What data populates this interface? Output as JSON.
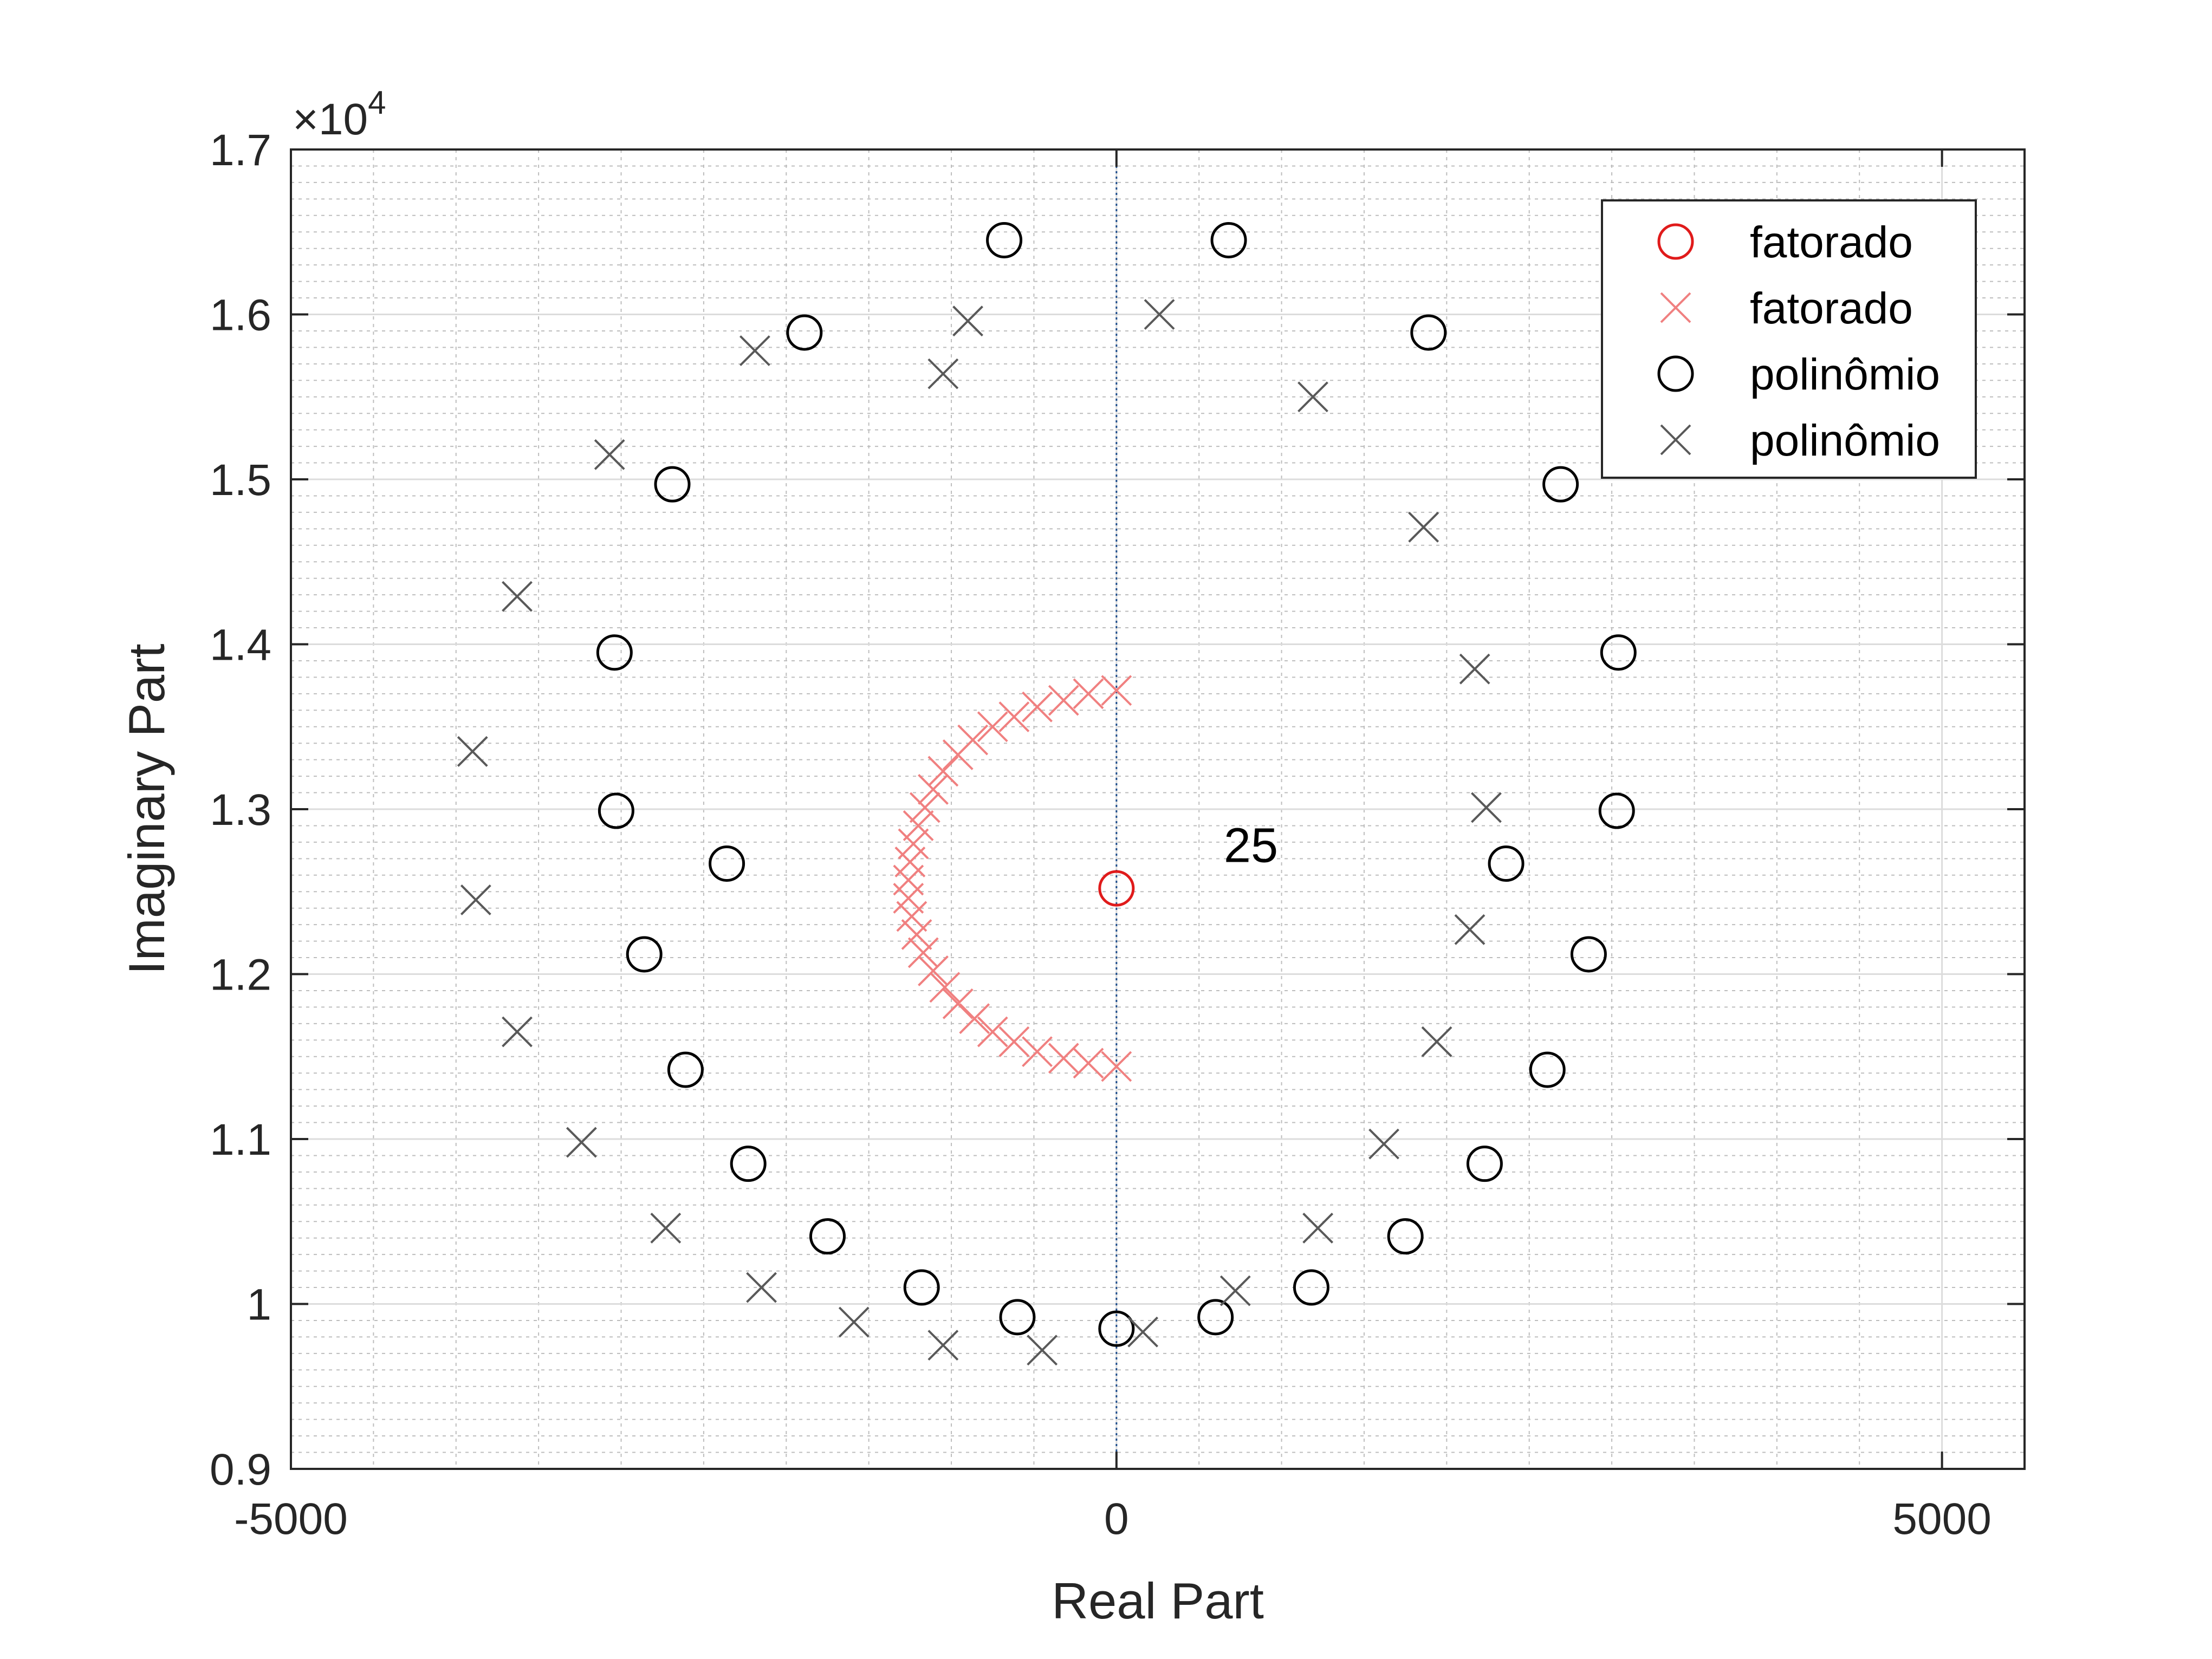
{
  "chart_data": {
    "type": "scatter",
    "title": "",
    "xlabel": "Real Part",
    "ylabel": "Imaginary Part",
    "xlim": [
      -5000,
      5500
    ],
    "ylim": [
      9000,
      17000
    ],
    "x_ticks": [
      -5000,
      0,
      5000
    ],
    "x_tick_labels": [
      "-5000",
      "0",
      "5000"
    ],
    "y_ticks": [
      9000,
      10000,
      11000,
      12000,
      13000,
      14000,
      15000,
      16000,
      17000
    ],
    "y_tick_labels": [
      "0.9",
      "1",
      "1.1",
      "1.2",
      "1.3",
      "1.4",
      "1.5",
      "1.6",
      "1.7"
    ],
    "y_exponent_prefix": "×10",
    "y_exponent_power": "4",
    "grid": true,
    "minor_grid": true,
    "legend_position": "top-right",
    "legend": [
      "fatorado",
      "fatorado",
      "polinômio",
      "polinômio"
    ],
    "annotation": {
      "text": "25",
      "x": 650,
      "y": 12680
    },
    "series": [
      {
        "name": "fatorado",
        "marker": "o",
        "color": "#e01b1b",
        "points": [
          [
            0,
            12520
          ]
        ]
      },
      {
        "name": "fatorado",
        "marker": "x",
        "color": "#f08080",
        "points": [
          [
            0,
            13720
          ],
          [
            -170,
            13700
          ],
          [
            -320,
            13660
          ],
          [
            -480,
            13620
          ],
          [
            -620,
            13560
          ],
          [
            -750,
            13500
          ],
          [
            -870,
            13420
          ],
          [
            -960,
            13330
          ],
          [
            -1050,
            13230
          ],
          [
            -1110,
            13120
          ],
          [
            -1160,
            13010
          ],
          [
            -1200,
            12900
          ],
          [
            -1230,
            12790
          ],
          [
            -1250,
            12680
          ],
          [
            -1260,
            12570
          ],
          [
            -1260,
            12460
          ],
          [
            -1240,
            12350
          ],
          [
            -1210,
            12240
          ],
          [
            -1170,
            12130
          ],
          [
            -1110,
            12020
          ],
          [
            -1040,
            11920
          ],
          [
            -960,
            11820
          ],
          [
            -860,
            11730
          ],
          [
            -750,
            11650
          ],
          [
            -620,
            11590
          ],
          [
            -480,
            11530
          ],
          [
            -320,
            11490
          ],
          [
            -170,
            11460
          ],
          [
            0,
            11440
          ]
        ]
      },
      {
        "name": "polinômio",
        "marker": "o",
        "color": "#000000",
        "points": [
          [
            -680,
            16450
          ],
          [
            680,
            16450
          ],
          [
            -1890,
            15890
          ],
          [
            1890,
            15890
          ],
          [
            -2690,
            14970
          ],
          [
            2690,
            14970
          ],
          [
            -3040,
            13950
          ],
          [
            3040,
            13950
          ],
          [
            -3030,
            12990
          ],
          [
            3030,
            12990
          ],
          [
            -2360,
            12670
          ],
          [
            2360,
            12670
          ],
          [
            -2860,
            12120
          ],
          [
            2860,
            12120
          ],
          [
            -2610,
            11420
          ],
          [
            2610,
            11420
          ],
          [
            -2230,
            10850
          ],
          [
            2230,
            10850
          ],
          [
            -1750,
            10410
          ],
          [
            1750,
            10410
          ],
          [
            -1180,
            10100
          ],
          [
            1180,
            10100
          ],
          [
            -600,
            9920
          ],
          [
            600,
            9920
          ],
          [
            0,
            9850
          ]
        ]
      },
      {
        "name": "polinômio",
        "marker": "x",
        "color": "#595959",
        "points": [
          [
            -900,
            15960
          ],
          [
            260,
            16000
          ],
          [
            -1050,
            15640
          ],
          [
            -2190,
            15780
          ],
          [
            1190,
            15500
          ],
          [
            -3070,
            15150
          ],
          [
            1860,
            14710
          ],
          [
            -3630,
            14290
          ],
          [
            2170,
            13850
          ],
          [
            -3900,
            13350
          ],
          [
            2240,
            13010
          ],
          [
            -3880,
            12450
          ],
          [
            2140,
            12270
          ],
          [
            -3630,
            11650
          ],
          [
            1940,
            11590
          ],
          [
            -3240,
            10980
          ],
          [
            1620,
            10970
          ],
          [
            -2730,
            10460
          ],
          [
            1220,
            10460
          ],
          [
            -2150,
            10100
          ],
          [
            720,
            10080
          ],
          [
            -1590,
            9890
          ],
          [
            160,
            9830
          ],
          [
            -1050,
            9750
          ],
          [
            -450,
            9720
          ]
        ]
      }
    ]
  }
}
